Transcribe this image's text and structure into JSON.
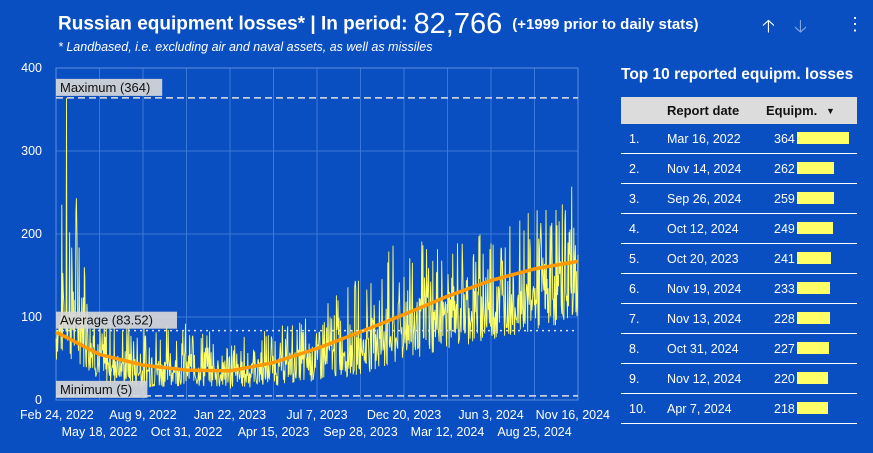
{
  "header": {
    "title": "Russian equipment losses* | In period:",
    "total": "82,766",
    "prior_note": "(+1999 prior to daily stats)",
    "subtitle": "* Landbased, i.e. excluding air and naval assets, as well as missiles",
    "up_icon": "arrow-up-icon",
    "down_icon": "arrow-down-icon",
    "more_icon": "more-vert-icon"
  },
  "chart_data": {
    "type": "line",
    "x_start": "Feb 24, 2022",
    "x_end": "Nov 16, 2024",
    "ylim": [
      0,
      400
    ],
    "yticks": [
      "0",
      "100",
      "200",
      "300",
      "400"
    ],
    "xticks_top": [
      "Feb 24, 2022",
      "Aug 9, 2022",
      "Jan 22, 2023",
      "Jul 7, 2023",
      "Dec 20, 2023",
      "Jun 3, 2024",
      "Nov 16, 2024"
    ],
    "xticks_bottom": [
      "May 18, 2022",
      "Oct 31, 2022",
      "Apr 15, 2023",
      "Sep 28, 2023",
      "Mar 12, 2024",
      "Aug 25, 2024"
    ],
    "reference_lines": [
      {
        "label": "Maximum (364)",
        "value": 364
      },
      {
        "label": "Average (83.52)",
        "value": 83.52
      },
      {
        "label": "Minimum (5)",
        "value": 5
      }
    ],
    "trend": [
      {
        "x": "Feb 24, 2022",
        "y": 82
      },
      {
        "x": "May 18, 2022",
        "y": 55
      },
      {
        "x": "Aug 9, 2022",
        "y": 42
      },
      {
        "x": "Oct 31, 2022",
        "y": 36
      },
      {
        "x": "Jan 22, 2023",
        "y": 35
      },
      {
        "x": "Apr 15, 2023",
        "y": 45
      },
      {
        "x": "Jul 7, 2023",
        "y": 62
      },
      {
        "x": "Sep 28, 2023",
        "y": 82
      },
      {
        "x": "Dec 20, 2023",
        "y": 103
      },
      {
        "x": "Mar 12, 2024",
        "y": 125
      },
      {
        "x": "Jun 3, 2024",
        "y": 144
      },
      {
        "x": "Aug 25, 2024",
        "y": 158
      },
      {
        "x": "Nov 16, 2024",
        "y": 167
      }
    ],
    "daily_envelope": [
      {
        "x": "Feb 24, 2022",
        "low": 40,
        "high": 110
      },
      {
        "x": "Mar 16, 2022",
        "low": 30,
        "high": 364
      },
      {
        "x": "May 18, 2022",
        "low": 15,
        "high": 100
      },
      {
        "x": "Aug 9, 2022",
        "low": 8,
        "high": 90
      },
      {
        "x": "Oct 31, 2022",
        "low": 10,
        "high": 95
      },
      {
        "x": "Jan 22, 2023",
        "low": 8,
        "high": 75
      },
      {
        "x": "Apr 15, 2023",
        "low": 10,
        "high": 90
      },
      {
        "x": "Jul 7, 2023",
        "low": 15,
        "high": 110
      },
      {
        "x": "Sep 28, 2023",
        "low": 20,
        "high": 150
      },
      {
        "x": "Dec 20, 2023",
        "low": 30,
        "high": 200
      },
      {
        "x": "Mar 12, 2024",
        "low": 50,
        "high": 195
      },
      {
        "x": "Jun 3, 2024",
        "low": 60,
        "high": 210
      },
      {
        "x": "Aug 25, 2024",
        "low": 70,
        "high": 230
      },
      {
        "x": "Nov 16, 2024",
        "low": 80,
        "high": 262
      }
    ],
    "colors": {
      "daily": "#ffff66",
      "trend": "#ff9900",
      "grid": "#3a78d8",
      "reference": "#e0e0e0"
    }
  },
  "table": {
    "title": "Top 10 reported equipm. losses",
    "col_date": "Report date",
    "col_value": "Equipm.",
    "sort_icon": "sort-desc-icon",
    "bar_color": "#ffff66",
    "max_value": 364,
    "rows": [
      {
        "rank": "1.",
        "date": "Mar 16, 2022",
        "value": 364
      },
      {
        "rank": "2.",
        "date": "Nov 14, 2024",
        "value": 262
      },
      {
        "rank": "3.",
        "date": "Sep 26, 2024",
        "value": 259
      },
      {
        "rank": "4.",
        "date": "Oct 12, 2024",
        "value": 249
      },
      {
        "rank": "5.",
        "date": "Oct 20, 2023",
        "value": 241
      },
      {
        "rank": "6.",
        "date": "Nov 19, 2024",
        "value": 233
      },
      {
        "rank": "7.",
        "date": "Nov 13, 2024",
        "value": 228
      },
      {
        "rank": "8.",
        "date": "Oct 31, 2024",
        "value": 227
      },
      {
        "rank": "9.",
        "date": "Nov 12, 2024",
        "value": 220
      },
      {
        "rank": "10.",
        "date": "Apr 7, 2024",
        "value": 218
      }
    ]
  }
}
